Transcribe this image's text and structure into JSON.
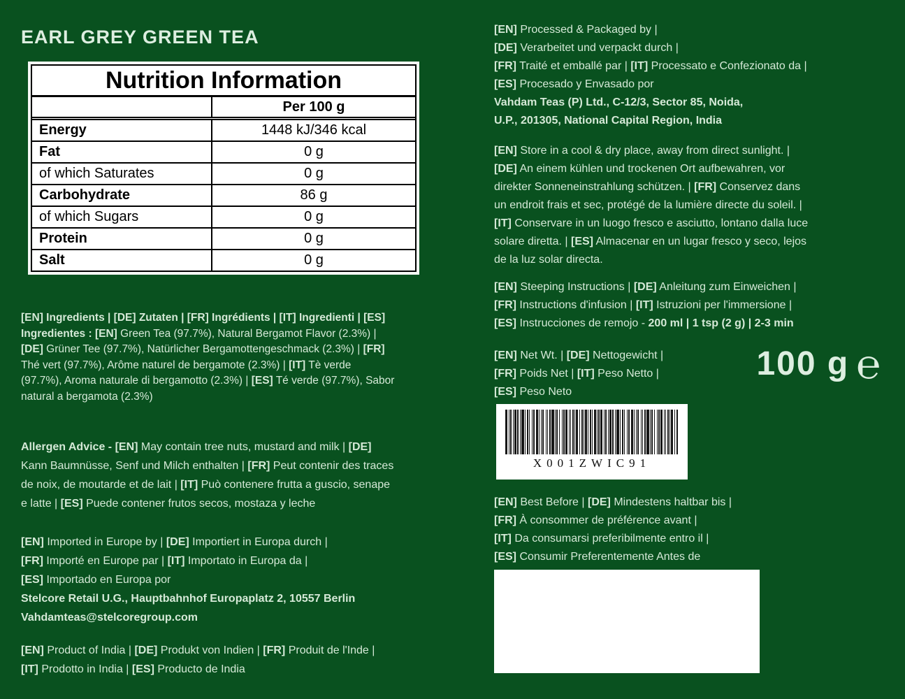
{
  "title": "EARL GREY GREEN TEA",
  "colors": {
    "background": "#09511f",
    "text": "#d5e9d7",
    "title_text": "#ddeee0",
    "table_background": "#ffffff",
    "table_text": "#000000",
    "barcode_background": "#ffffff",
    "date_box_background": "#ffffff"
  },
  "nutrition_table": {
    "title": "Nutrition Information",
    "column_header": "Per 100 g",
    "rows": [
      {
        "label": "Energy",
        "value": "1448 kJ/346 kcal",
        "bold": true
      },
      {
        "label": "Fat",
        "value": "0 g",
        "bold": true
      },
      {
        "label": "of which Saturates",
        "value": "0 g",
        "bold": false
      },
      {
        "label": "Carbohydrate",
        "value": "86 g",
        "bold": true
      },
      {
        "label": "of which Sugars",
        "value": "0 g",
        "bold": false
      },
      {
        "label": "Protein",
        "value": "0 g",
        "bold": true
      },
      {
        "label": "Salt",
        "value": "0 g",
        "bold": true
      }
    ]
  },
  "left": {
    "ingredients": {
      "lines": [
        [
          {
            "t": "[EN]",
            "b": true
          },
          {
            "t": " Ingredients | ",
            "b": true
          },
          {
            "t": "[DE]",
            "b": true
          },
          {
            "t": " Zutaten | ",
            "b": true
          },
          {
            "t": "[FR]",
            "b": true
          },
          {
            "t": " Ingrédients | ",
            "b": true
          },
          {
            "t": "[IT]",
            "b": true
          },
          {
            "t": " Ingredienti | ",
            "b": true
          },
          {
            "t": "[ES]",
            "b": true
          }
        ],
        [
          {
            "t": "Ingredientes : ",
            "b": true
          },
          {
            "t": "[EN]",
            "b": true
          },
          {
            "t": " Green Tea (97.7%), Natural Bergamot Flavor (2.3%) |",
            "b": false
          }
        ],
        [
          {
            "t": "[DE]",
            "b": true
          },
          {
            "t": " Grüner Tee (97.7%), Natürlicher Bergamottengeschmack (2.3%) | ",
            "b": false
          },
          {
            "t": "[FR]",
            "b": true
          }
        ],
        [
          {
            "t": "Thé vert (97.7%), Arôme naturel de bergamote (2.3%) | ",
            "b": false
          },
          {
            "t": "[IT]",
            "b": true
          },
          {
            "t": " Tè verde",
            "b": false
          }
        ],
        [
          {
            "t": "(97.7%), Aroma naturale di bergamotto (2.3%) | ",
            "b": false
          },
          {
            "t": "[ES]",
            "b": true
          },
          {
            "t": " Té verde (97.7%), Sabor",
            "b": false
          }
        ],
        [
          {
            "t": "natural a bergamota (2.3%)",
            "b": false
          }
        ]
      ]
    },
    "allergen": {
      "lines": [
        [
          {
            "t": "Allergen Advice - ",
            "b": true
          },
          {
            "t": "[EN]",
            "b": true
          },
          {
            "t": " May contain tree nuts, mustard and milk | ",
            "b": false
          },
          {
            "t": "[DE]",
            "b": true
          }
        ],
        [
          {
            "t": "Kann Baumnüsse, Senf und Milch enthalten | ",
            "b": false
          },
          {
            "t": "[FR]",
            "b": true
          },
          {
            "t": " Peut contenir des traces",
            "b": false
          }
        ],
        [
          {
            "t": "de noix, de moutarde et de lait | ",
            "b": false
          },
          {
            "t": "[IT]",
            "b": true
          },
          {
            "t": " Può contenere frutta a guscio, senape",
            "b": false
          }
        ],
        [
          {
            "t": "e latte | ",
            "b": false
          },
          {
            "t": "[ES]",
            "b": true
          },
          {
            "t": " Puede contener frutos secos, mostaza y leche",
            "b": false
          }
        ]
      ]
    },
    "importer": {
      "lines": [
        [
          {
            "t": "[EN]",
            "b": true
          },
          {
            "t": " Imported in Europe by | ",
            "b": false
          },
          {
            "t": "[DE]",
            "b": true
          },
          {
            "t": " Importiert in Europa durch |",
            "b": false
          }
        ],
        [
          {
            "t": "[FR]",
            "b": true
          },
          {
            "t": " Importé en Europe par | ",
            "b": false
          },
          {
            "t": "[IT]",
            "b": true
          },
          {
            "t": " Importato in Europa da |",
            "b": false
          }
        ],
        [
          {
            "t": "[ES]",
            "b": true
          },
          {
            "t": " Importado en Europa por",
            "b": false
          }
        ],
        [
          {
            "t": "Stelcore Retail U.G., Hauptbahnhof Europaplatz 2, 10557 Berlin",
            "b": true
          }
        ],
        [
          {
            "t": "Vahdamteas@stelcoregroup.com",
            "b": true
          }
        ]
      ]
    },
    "origin": {
      "lines": [
        [
          {
            "t": "[EN]",
            "b": true
          },
          {
            "t": " Product of India | ",
            "b": false
          },
          {
            "t": "[DE]",
            "b": true
          },
          {
            "t": " Produkt von Indien | ",
            "b": false
          },
          {
            "t": "[FR]",
            "b": true
          },
          {
            "t": " Produit de l'Inde |",
            "b": false
          }
        ],
        [
          {
            "t": "[IT]",
            "b": true
          },
          {
            "t": " Prodotto in India | ",
            "b": false
          },
          {
            "t": "[ES]",
            "b": true
          },
          {
            "t": " Producto de India",
            "b": false
          }
        ]
      ]
    }
  },
  "right": {
    "processor": {
      "lines": [
        [
          {
            "t": "[EN]",
            "b": true
          },
          {
            "t": " Processed & Packaged by |",
            "b": false
          }
        ],
        [
          {
            "t": "[DE]",
            "b": true
          },
          {
            "t": " Verarbeitet und verpackt durch |",
            "b": false
          }
        ],
        [
          {
            "t": "[FR]",
            "b": true
          },
          {
            "t": " Traité et emballé par | ",
            "b": false
          },
          {
            "t": "[IT]",
            "b": true
          },
          {
            "t": " Processato e Confezionato da |",
            "b": false
          }
        ],
        [
          {
            "t": "[ES]",
            "b": true
          },
          {
            "t": " Procesado y Envasado por",
            "b": false
          }
        ],
        [
          {
            "t": "Vahdam Teas (P) Ltd., C-12/3, Sector 85, Noida,",
            "b": true
          }
        ],
        [
          {
            "t": "U.P., 201305, National Capital Region, India",
            "b": true
          }
        ]
      ]
    },
    "storage": {
      "lines": [
        [
          {
            "t": "[EN]",
            "b": true
          },
          {
            "t": " Store in a cool & dry place, away from direct sunlight. |",
            "b": false
          }
        ],
        [
          {
            "t": "[DE]",
            "b": true
          },
          {
            "t": " An einem kühlen und trockenen Ort aufbewahren, vor",
            "b": false
          }
        ],
        [
          {
            "t": "direkter Sonneneinstrahlung schützen. | ",
            "b": false
          },
          {
            "t": "[FR]",
            "b": true
          },
          {
            "t": " Conservez dans",
            "b": false
          }
        ],
        [
          {
            "t": "un endroit frais et sec, protégé de la lumière directe du soleil. |",
            "b": false
          }
        ],
        [
          {
            "t": "[IT]",
            "b": true
          },
          {
            "t": " Conservare in un luogo fresco e asciutto, lontano dalla luce",
            "b": false
          }
        ],
        [
          {
            "t": "solare diretta. | ",
            "b": false
          },
          {
            "t": "[ES]",
            "b": true
          },
          {
            "t": " Almacenar en un lugar fresco y seco, lejos",
            "b": false
          }
        ],
        [
          {
            "t": "de la luz solar directa.",
            "b": false
          }
        ]
      ]
    },
    "steeping": {
      "lines": [
        [
          {
            "t": "[EN]",
            "b": true
          },
          {
            "t": " Steeping Instructions | ",
            "b": false
          },
          {
            "t": "[DE]",
            "b": true
          },
          {
            "t": " Anleitung zum Einweichen |",
            "b": false
          }
        ],
        [
          {
            "t": "[FR]",
            "b": true
          },
          {
            "t": " Instructions d'infusion | ",
            "b": false
          },
          {
            "t": "[IT]",
            "b": true
          },
          {
            "t": " Istruzioni per l'immersione |",
            "b": false
          }
        ],
        [
          {
            "t": "[ES]",
            "b": true
          },
          {
            "t": " Instrucciones de remojo - ",
            "b": false
          },
          {
            "t": "200 ml | 1 tsp (2 g) | 2-3 min",
            "b": true
          }
        ]
      ]
    },
    "net_weight": {
      "lines": [
        [
          {
            "t": "[EN]",
            "b": true
          },
          {
            "t": " Net Wt. | ",
            "b": false
          },
          {
            "t": "[DE]",
            "b": true
          },
          {
            "t": " Nettogewicht |",
            "b": false
          }
        ],
        [
          {
            "t": "[FR]",
            "b": true
          },
          {
            "t": " Poids Net | ",
            "b": false
          },
          {
            "t": "[IT]",
            "b": true
          },
          {
            "t": " Peso Netto |",
            "b": false
          }
        ],
        [
          {
            "t": "[ES]",
            "b": true
          },
          {
            "t": " Peso Neto",
            "b": false
          }
        ]
      ],
      "display": "100 g",
      "estimated_sign": "℮"
    },
    "barcode": {
      "text": "X001ZWIC91"
    },
    "best_before": {
      "lines": [
        [
          {
            "t": "[EN]",
            "b": true
          },
          {
            "t": " Best Before  | ",
            "b": false
          },
          {
            "t": "[DE]",
            "b": true
          },
          {
            "t": " Mindestens haltbar bis |",
            "b": false
          }
        ],
        [
          {
            "t": "[FR]",
            "b": true
          },
          {
            "t": " À consommer de préférence avant |",
            "b": false
          }
        ],
        [
          {
            "t": "[IT]",
            "b": true
          },
          {
            "t": " Da consumarsi preferibilmente entro il |",
            "b": false
          }
        ],
        [
          {
            "t": "[ES]",
            "b": true
          },
          {
            "t": " Consumir Preferentemente Antes de",
            "b": false
          }
        ]
      ]
    }
  }
}
